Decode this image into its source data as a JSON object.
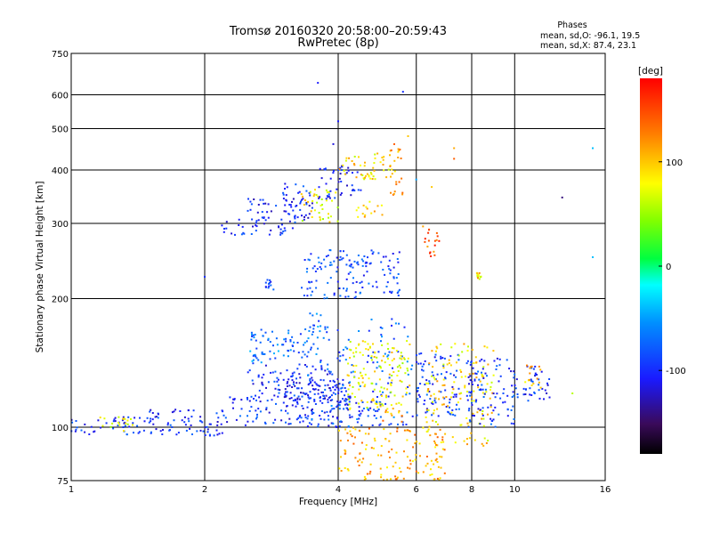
{
  "chart_data": {
    "type": "scatter",
    "title": "Tromsø 20160320 20:58:00–20:59:43",
    "subtitle": "RwPretec (8p)",
    "xlabel": "Frequency [MHz]",
    "ylabel": "Stationary phase Virtual Height [km]",
    "x_scale": "log",
    "y_scale": "log",
    "xlim": [
      1,
      16
    ],
    "ylim": [
      75,
      750
    ],
    "x_ticks": [
      "1",
      "2",
      "4",
      "6",
      "8",
      "10",
      "16"
    ],
    "y_ticks": [
      "75",
      "100",
      "200",
      "300",
      "400",
      "500",
      "600",
      "750"
    ],
    "grid": true,
    "stats": {
      "heading": "Phases",
      "line_o": "mean, sd,O: -96.1, 19.5",
      "line_x": "mean, sd,X:  87.4, 23.1"
    },
    "colorbar": {
      "label": "[deg]",
      "ticks": [
        "100",
        "0",
        "-100"
      ],
      "min": -180,
      "max": 180
    },
    "clusters": [
      {
        "x": [
          1.0,
          1.55
        ],
        "y": [
          96,
          106
        ],
        "phase": -100
      },
      {
        "x": [
          1.15,
          1.4
        ],
        "y": [
          98,
          106
        ],
        "phase": 70
      },
      {
        "x": [
          1.5,
          2.1
        ],
        "y": [
          96,
          110
        ],
        "phase": -100
      },
      {
        "x": [
          2.0,
          2.2
        ],
        "y": [
          95,
          102
        ],
        "phase": -95
      },
      {
        "x": [
          2.15,
          3.2
        ],
        "y": [
          282,
          310
        ],
        "phase": -100
      },
      {
        "x": [
          2.5,
          3.5
        ],
        "y": [
          305,
          345
        ],
        "phase": -110
      },
      {
        "x": [
          3.0,
          3.5
        ],
        "y": [
          330,
          372
        ],
        "phase": -100
      },
      {
        "x": [
          3.3,
          4.0
        ],
        "y": [
          300,
          360
        ],
        "phase": 80
      },
      {
        "x": [
          3.6,
          4.5
        ],
        "y": [
          340,
          410
        ],
        "phase": -100
      },
      {
        "x": [
          4.0,
          5.3
        ],
        "y": [
          380,
          440
        ],
        "phase": 90
      },
      {
        "x": [
          4.4,
          5.1
        ],
        "y": [
          310,
          340
        ],
        "phase": 100
      },
      {
        "x": [
          5.2,
          5.6
        ],
        "y": [
          340,
          460
        ],
        "phase": 110
      },
      {
        "x": [
          2.6,
          2.9
        ],
        "y": [
          210,
          225
        ],
        "phase": -95
      },
      {
        "x": [
          3.3,
          5.5
        ],
        "y": [
          200,
          260
        ],
        "phase": -90
      },
      {
        "x": [
          2.5,
          3.6
        ],
        "y": [
          140,
          170
        ],
        "phase": -70
      },
      {
        "x": [
          3.4,
          3.8
        ],
        "y": [
          165,
          185
        ],
        "phase": -70
      },
      {
        "x": [
          2.5,
          4.0
        ],
        "y": [
          115,
          140
        ],
        "phase": -100
      },
      {
        "x": [
          3.0,
          4.3
        ],
        "y": [
          110,
          130
        ],
        "phase": -110
      },
      {
        "x": [
          2.1,
          5.0
        ],
        "y": [
          100,
          118
        ],
        "phase": -100
      },
      {
        "x": [
          3.4,
          5.9
        ],
        "y": [
          100,
          180
        ],
        "phase": -80
      },
      {
        "x": [
          4.2,
          5.8
        ],
        "y": [
          110,
          160
        ],
        "phase": 80
      },
      {
        "x": [
          5.0,
          5.6
        ],
        "y": [
          103,
          112
        ],
        "phase": 110
      },
      {
        "x": [
          6.0,
          7.5
        ],
        "y": [
          105,
          150
        ],
        "phase": -95
      },
      {
        "x": [
          6.3,
          9.0
        ],
        "y": [
          90,
          160
        ],
        "phase": 90
      },
      {
        "x": [
          7.8,
          10.0
        ],
        "y": [
          100,
          145
        ],
        "phase": -95
      },
      {
        "x": [
          10.0,
          12.0
        ],
        "y": [
          115,
          140
        ],
        "phase": -100
      },
      {
        "x": [
          10.5,
          11.5
        ],
        "y": [
          120,
          140
        ],
        "phase": 100
      },
      {
        "x": [
          4.0,
          7.0
        ],
        "y": [
          75,
          100
        ],
        "phase": 110
      },
      {
        "x": [
          6.2,
          6.8
        ],
        "y": [
          250,
          300
        ],
        "phase": 140
      },
      {
        "x": [
          8.2,
          8.4
        ],
        "y": [
          220,
          230
        ],
        "phase": 90
      }
    ],
    "sparse_points": [
      {
        "x": 3.6,
        "y": 640,
        "phase": -110
      },
      {
        "x": 5.6,
        "y": 610,
        "phase": -100
      },
      {
        "x": 4.0,
        "y": 520,
        "phase": -110
      },
      {
        "x": 3.9,
        "y": 460,
        "phase": -120
      },
      {
        "x": 5.75,
        "y": 480,
        "phase": 100
      },
      {
        "x": 7.3,
        "y": 450,
        "phase": 110
      },
      {
        "x": 7.3,
        "y": 425,
        "phase": 140
      },
      {
        "x": 15.0,
        "y": 450,
        "phase": -40
      },
      {
        "x": 12.8,
        "y": 345,
        "phase": -150
      },
      {
        "x": 15.0,
        "y": 250,
        "phase": -40
      },
      {
        "x": 6.5,
        "y": 365,
        "phase": 100
      },
      {
        "x": 6.0,
        "y": 380,
        "phase": -50
      },
      {
        "x": 2.0,
        "y": 225,
        "phase": -100
      },
      {
        "x": 13.5,
        "y": 120,
        "phase": 60
      }
    ]
  }
}
